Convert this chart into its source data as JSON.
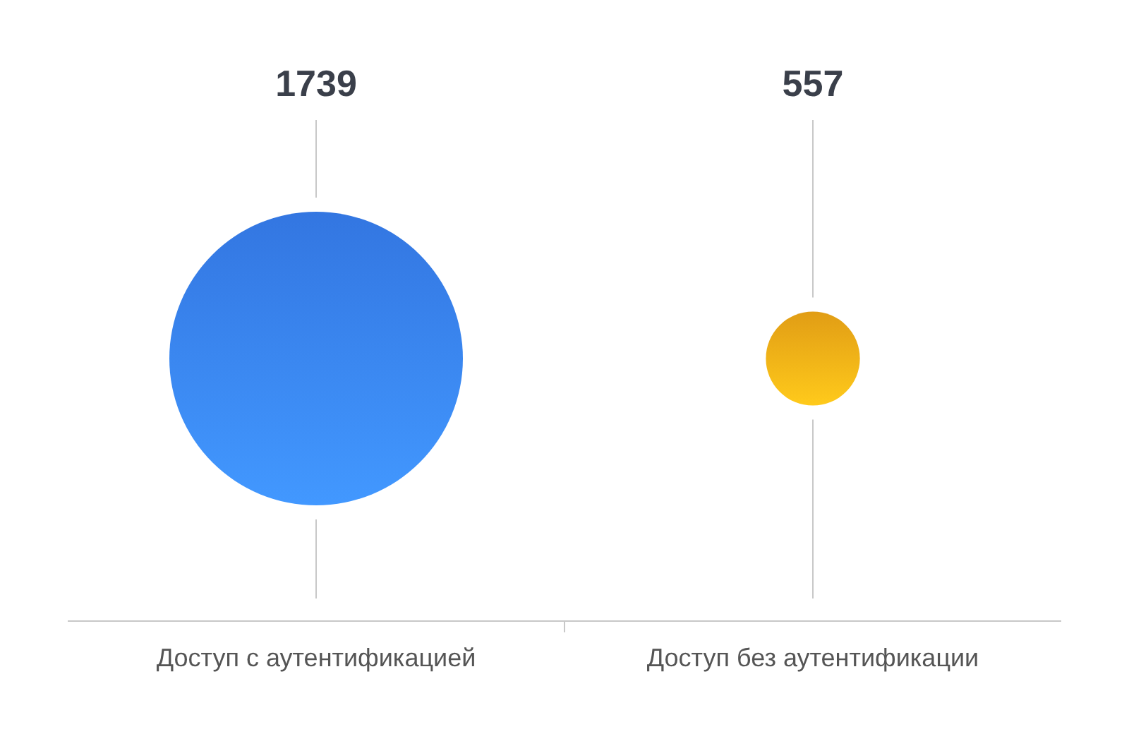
{
  "chart_data": {
    "type": "other",
    "categories": [
      "Доступ с аутентификацией",
      "Доступ без аутентификации"
    ],
    "values": [
      1739,
      557
    ],
    "colors": [
      "#3a86ff",
      "#ffb218"
    ],
    "data_labels": true
  }
}
